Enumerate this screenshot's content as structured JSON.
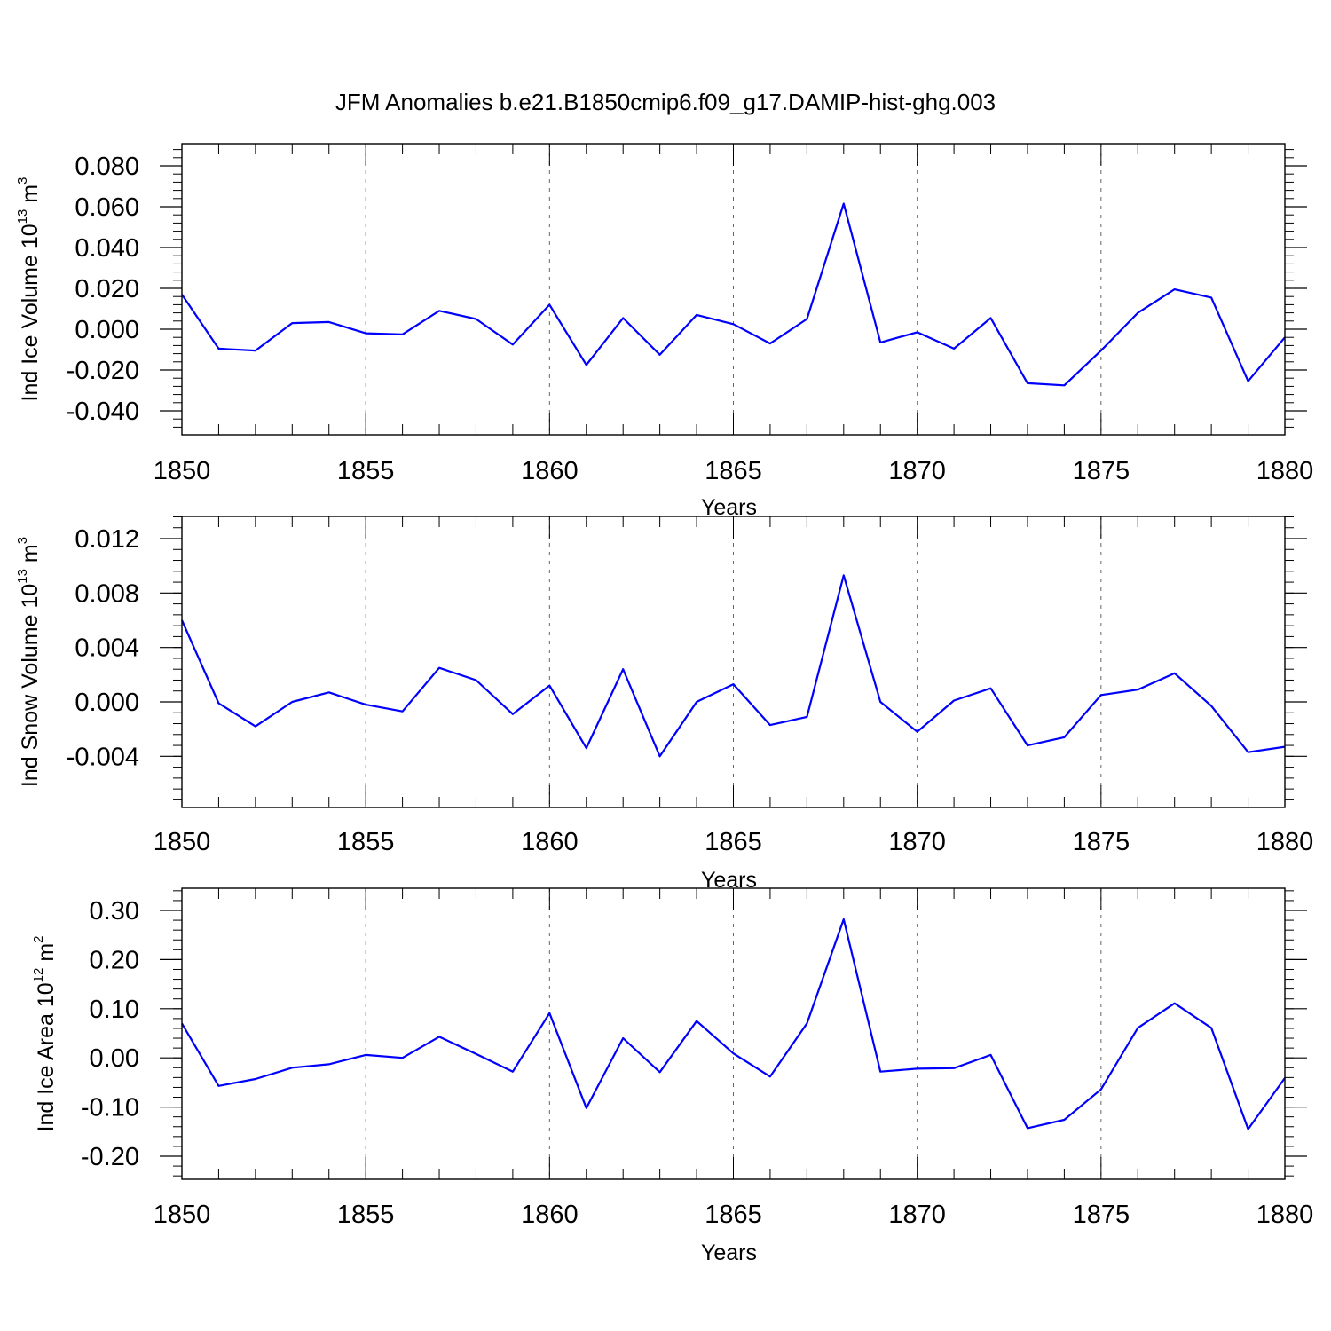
{
  "title": "JFM Anomalies b.e21.B1850cmip6.f09_g17.DAMIP-hist-ghg.003",
  "colors": {
    "line": "#0000ff",
    "axis": "#000000",
    "grid": "#666666"
  },
  "chart_data": [
    {
      "type": "line",
      "ylabel_main": "Ind Ice Volume 10",
      "ylabel_exp": "13",
      "ylabel_unit": " m",
      "ylabel_unit_exp": "3",
      "xlabel": "Years",
      "xlim": [
        1850,
        1880
      ],
      "ylim": [
        -0.04,
        0.08
      ],
      "x_ticks": [
        "1850",
        "1855",
        "1860",
        "1865",
        "1870",
        "1875",
        "1880"
      ],
      "y_ticks": [
        "0.080",
        "0.060",
        "0.040",
        "0.020",
        "0.000",
        "-0.020",
        "-0.040"
      ],
      "x": [
        1850,
        1851,
        1852,
        1853,
        1854,
        1855,
        1856,
        1857,
        1858,
        1859,
        1860,
        1861,
        1862,
        1863,
        1864,
        1865,
        1866,
        1867,
        1868,
        1869,
        1870,
        1871,
        1872,
        1873,
        1874,
        1875,
        1876,
        1877,
        1878,
        1879,
        1880
      ],
      "values": [
        0.017,
        -0.0095,
        -0.0105,
        0.003,
        0.0035,
        -0.002,
        -0.0025,
        0.009,
        0.005,
        -0.0075,
        0.012,
        -0.0175,
        0.0055,
        -0.0125,
        0.007,
        0.0025,
        -0.007,
        0.005,
        0.0615,
        -0.0065,
        -0.0015,
        -0.0095,
        0.0055,
        -0.0265,
        -0.0275,
        -0.0105,
        0.008,
        0.0195,
        0.0155,
        -0.0255,
        -0.004
      ]
    },
    {
      "type": "line",
      "ylabel_main": "Ind Snow Volume 10",
      "ylabel_exp": "13",
      "ylabel_unit": " m",
      "ylabel_unit_exp": "3",
      "xlabel": "Years",
      "xlim": [
        1850,
        1880
      ],
      "ylim": [
        -0.006,
        0.012
      ],
      "x_ticks": [
        "1850",
        "1855",
        "1860",
        "1865",
        "1870",
        "1875",
        "1880"
      ],
      "y_ticks": [
        "0.012",
        "0.008",
        "0.004",
        "0.000",
        "-0.004"
      ],
      "x": [
        1850,
        1851,
        1852,
        1853,
        1854,
        1855,
        1856,
        1857,
        1858,
        1859,
        1860,
        1861,
        1862,
        1863,
        1864,
        1865,
        1866,
        1867,
        1868,
        1869,
        1870,
        1871,
        1872,
        1873,
        1874,
        1875,
        1876,
        1877,
        1878,
        1879,
        1880
      ],
      "values": [
        0.006,
        -0.0001,
        -0.0018,
        0.0,
        0.0007,
        -0.0002,
        -0.0007,
        0.0025,
        0.0016,
        -0.0009,
        0.0012,
        -0.0034,
        0.0024,
        -0.004,
        0.0,
        0.0013,
        -0.0017,
        -0.0011,
        0.0093,
        0.0,
        -0.0022,
        0.0001,
        0.001,
        -0.0032,
        -0.0026,
        0.0005,
        0.0009,
        0.0021,
        -0.0003,
        -0.0037,
        -0.0033
      ]
    },
    {
      "type": "line",
      "ylabel_main": "Ind Ice Area 10",
      "ylabel_exp": "12",
      "ylabel_unit": " m",
      "ylabel_unit_exp": "2",
      "xlabel": "Years",
      "xlim": [
        1850,
        1880
      ],
      "ylim": [
        -0.2,
        0.3
      ],
      "x_ticks": [
        "1850",
        "1855",
        "1860",
        "1865",
        "1870",
        "1875",
        "1880"
      ],
      "y_ticks": [
        "0.30",
        "0.20",
        "0.10",
        "0.00",
        "-0.10",
        "-0.20"
      ],
      "x": [
        1850,
        1851,
        1852,
        1853,
        1854,
        1855,
        1856,
        1857,
        1858,
        1859,
        1860,
        1861,
        1862,
        1863,
        1864,
        1865,
        1866,
        1867,
        1868,
        1869,
        1870,
        1871,
        1872,
        1873,
        1874,
        1875,
        1876,
        1877,
        1878,
        1879,
        1880
      ],
      "values": [
        0.07,
        -0.057,
        -0.043,
        -0.02,
        -0.013,
        0.006,
        0.0,
        0.043,
        0.008,
        -0.028,
        0.091,
        -0.102,
        0.04,
        -0.029,
        0.075,
        0.009,
        -0.038,
        0.07,
        0.282,
        -0.028,
        -0.022,
        -0.021,
        0.006,
        -0.143,
        -0.126,
        -0.064,
        0.061,
        0.111,
        0.061,
        -0.145,
        -0.041
      ]
    }
  ]
}
